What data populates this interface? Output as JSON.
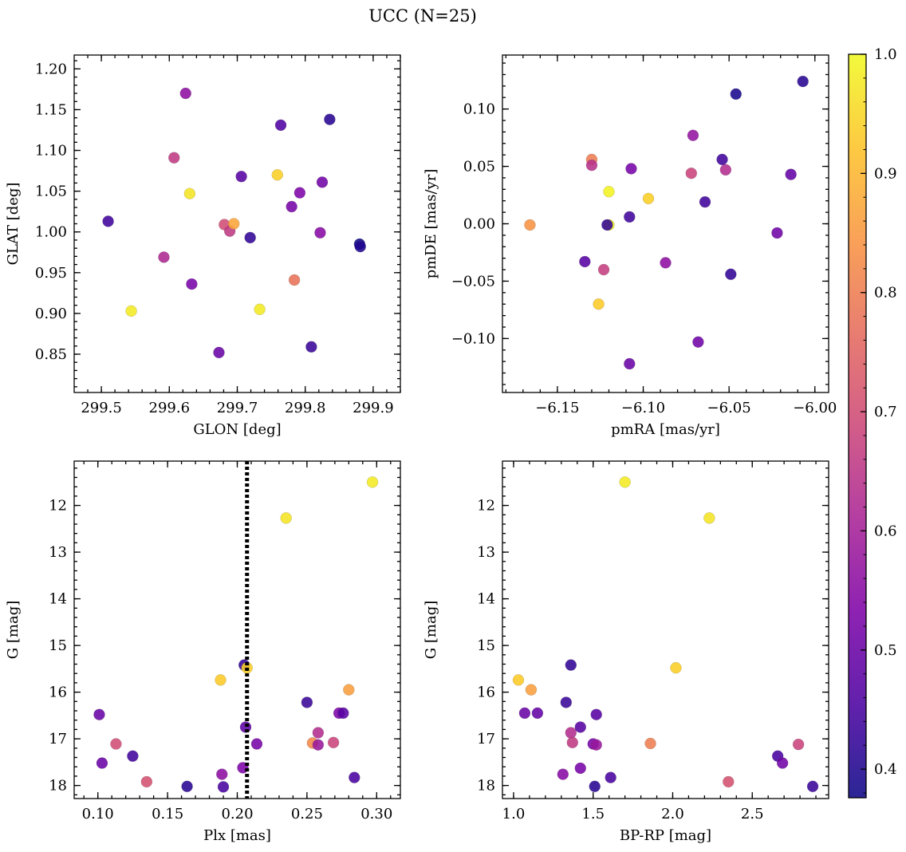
{
  "figure": {
    "title": "UCC (N=25)"
  },
  "colorbar": {
    "min": 0.376,
    "max": 1.0,
    "ticks": [
      0.4,
      0.5,
      0.6,
      0.7,
      0.8,
      0.9,
      1.0
    ],
    "tick_labels": [
      "0.4",
      "0.5",
      "0.6",
      "0.7",
      "0.8",
      "0.9",
      "1.0"
    ],
    "colormap": "plasma"
  },
  "chart_data": [
    {
      "type": "scatter",
      "xlabel": "GLON [deg]",
      "ylabel": "GLAT [deg]",
      "xlim": [
        299.46,
        299.94
      ],
      "ylim": [
        0.803,
        1.217
      ],
      "y_inverted": false,
      "xticks": [
        299.5,
        299.6,
        299.7,
        299.8,
        299.9
      ],
      "xtick_labels": [
        "299.5",
        "299.6",
        "299.7",
        "299.8",
        "299.9"
      ],
      "yticks": [
        0.85,
        0.9,
        0.95,
        1.0,
        1.05,
        1.1,
        1.15,
        1.2
      ],
      "ytick_labels": [
        "0.85",
        "0.90",
        "0.95",
        "1.00",
        "1.05",
        "1.10",
        "1.15",
        "1.20"
      ],
      "points": [
        {
          "x": 299.51,
          "y": 1.013,
          "c": 0.44
        },
        {
          "x": 299.544,
          "y": 0.903,
          "c": 0.98
        },
        {
          "x": 299.592,
          "y": 0.969,
          "c": 0.62
        },
        {
          "x": 299.607,
          "y": 1.091,
          "c": 0.66
        },
        {
          "x": 299.624,
          "y": 1.17,
          "c": 0.56
        },
        {
          "x": 299.63,
          "y": 1.047,
          "c": 0.97
        },
        {
          "x": 299.633,
          "y": 0.936,
          "c": 0.52
        },
        {
          "x": 299.673,
          "y": 0.852,
          "c": 0.5
        },
        {
          "x": 299.681,
          "y": 1.009,
          "c": 0.7
        },
        {
          "x": 299.689,
          "y": 1.001,
          "c": 0.66
        },
        {
          "x": 299.695,
          "y": 1.01,
          "c": 0.87
        },
        {
          "x": 299.706,
          "y": 1.068,
          "c": 0.47
        },
        {
          "x": 299.719,
          "y": 0.993,
          "c": 0.42
        },
        {
          "x": 299.733,
          "y": 0.905,
          "c": 0.98
        },
        {
          "x": 299.759,
          "y": 1.07,
          "c": 0.94
        },
        {
          "x": 299.764,
          "y": 1.131,
          "c": 0.46
        },
        {
          "x": 299.78,
          "y": 1.031,
          "c": 0.52
        },
        {
          "x": 299.784,
          "y": 0.941,
          "c": 0.78
        },
        {
          "x": 299.792,
          "y": 1.048,
          "c": 0.53
        },
        {
          "x": 299.809,
          "y": 0.859,
          "c": 0.43
        },
        {
          "x": 299.822,
          "y": 0.999,
          "c": 0.55
        },
        {
          "x": 299.825,
          "y": 1.061,
          "c": 0.51
        },
        {
          "x": 299.836,
          "y": 1.138,
          "c": 0.41
        },
        {
          "x": 299.88,
          "y": 0.985,
          "c": 0.38
        },
        {
          "x": 299.881,
          "y": 0.982,
          "c": 0.4
        }
      ]
    },
    {
      "type": "scatter",
      "xlabel": "pmRA [mas/yr]",
      "ylabel": "pmDE [mas/yr]",
      "xlim": [
        -6.182,
        -5.992
      ],
      "ylim": [
        -0.147,
        0.147
      ],
      "y_inverted": false,
      "xticks": [
        -6.15,
        -6.1,
        -6.05,
        -6.0
      ],
      "xtick_labels": [
        "−6.15",
        "−6.10",
        "−6.05",
        "−6.00"
      ],
      "yticks": [
        -0.1,
        -0.05,
        0.0,
        0.05,
        0.1
      ],
      "ytick_labels": [
        "−0.10",
        "−0.05",
        "0.00",
        "0.05",
        "0.10"
      ],
      "points": [
        {
          "x": -6.166,
          "y": -0.001,
          "c": 0.84
        },
        {
          "x": -6.134,
          "y": -0.033,
          "c": 0.47
        },
        {
          "x": -6.13,
          "y": 0.056,
          "c": 0.8
        },
        {
          "x": -6.13,
          "y": 0.051,
          "c": 0.64
        },
        {
          "x": -6.126,
          "y": -0.07,
          "c": 0.93
        },
        {
          "x": -6.123,
          "y": -0.04,
          "c": 0.67
        },
        {
          "x": -6.12,
          "y": -0.001,
          "c": 0.99
        },
        {
          "x": -6.121,
          "y": -0.001,
          "c": 0.42
        },
        {
          "x": -6.12,
          "y": 0.028,
          "c": 0.99
        },
        {
          "x": -6.108,
          "y": 0.006,
          "c": 0.44
        },
        {
          "x": -6.108,
          "y": -0.122,
          "c": 0.5
        },
        {
          "x": -6.107,
          "y": 0.048,
          "c": 0.52
        },
        {
          "x": -6.097,
          "y": 0.022,
          "c": 0.94
        },
        {
          "x": -6.087,
          "y": -0.034,
          "c": 0.56
        },
        {
          "x": -6.072,
          "y": 0.044,
          "c": 0.68
        },
        {
          "x": -6.071,
          "y": 0.077,
          "c": 0.57
        },
        {
          "x": -6.068,
          "y": -0.103,
          "c": 0.51
        },
        {
          "x": -6.064,
          "y": 0.019,
          "c": 0.44
        },
        {
          "x": -6.054,
          "y": 0.056,
          "c": 0.44
        },
        {
          "x": -6.052,
          "y": 0.047,
          "c": 0.63
        },
        {
          "x": -6.049,
          "y": -0.044,
          "c": 0.42
        },
        {
          "x": -6.046,
          "y": 0.113,
          "c": 0.39
        },
        {
          "x": -6.022,
          "y": -0.008,
          "c": 0.51
        },
        {
          "x": -6.014,
          "y": 0.043,
          "c": 0.49
        },
        {
          "x": -6.007,
          "y": 0.124,
          "c": 0.41
        }
      ]
    },
    {
      "type": "scatter",
      "xlabel": "Plx [mas]",
      "ylabel": "G [mag]",
      "xlim": [
        0.083,
        0.317
      ],
      "ylim": [
        18.28,
        11.05
      ],
      "y_inverted": true,
      "xticks": [
        0.1,
        0.15,
        0.2,
        0.25,
        0.3
      ],
      "xtick_labels": [
        "0.10",
        "0.15",
        "0.20",
        "0.25",
        "0.30"
      ],
      "yticks": [
        12,
        13,
        14,
        15,
        16,
        17,
        18
      ],
      "ytick_labels": [
        "12",
        "13",
        "14",
        "15",
        "16",
        "17",
        "18"
      ],
      "vline": {
        "x": 0.207,
        "style": "dotted",
        "color": "#000000"
      },
      "points": [
        {
          "x": 0.297,
          "y": 11.5,
          "c": 0.98
        },
        {
          "x": 0.235,
          "y": 12.27,
          "c": 0.97
        },
        {
          "x": 0.205,
          "y": 15.42,
          "c": 0.42
        },
        {
          "x": 0.207,
          "y": 15.48,
          "c": 0.94
        },
        {
          "x": 0.188,
          "y": 15.74,
          "c": 0.93
        },
        {
          "x": 0.28,
          "y": 15.95,
          "c": 0.86
        },
        {
          "x": 0.25,
          "y": 16.22,
          "c": 0.43
        },
        {
          "x": 0.273,
          "y": 16.45,
          "c": 0.53
        },
        {
          "x": 0.276,
          "y": 16.45,
          "c": 0.47
        },
        {
          "x": 0.101,
          "y": 16.48,
          "c": 0.5
        },
        {
          "x": 0.206,
          "y": 16.75,
          "c": 0.48
        },
        {
          "x": 0.258,
          "y": 16.87,
          "c": 0.63
        },
        {
          "x": 0.113,
          "y": 17.11,
          "c": 0.7
        },
        {
          "x": 0.254,
          "y": 17.09,
          "c": 0.82
        },
        {
          "x": 0.258,
          "y": 17.13,
          "c": 0.58
        },
        {
          "x": 0.269,
          "y": 17.08,
          "c": 0.68
        },
        {
          "x": 0.214,
          "y": 17.11,
          "c": 0.52
        },
        {
          "x": 0.125,
          "y": 17.37,
          "c": 0.44
        },
        {
          "x": 0.103,
          "y": 17.52,
          "c": 0.5
        },
        {
          "x": 0.204,
          "y": 17.62,
          "c": 0.53
        },
        {
          "x": 0.189,
          "y": 17.76,
          "c": 0.56
        },
        {
          "x": 0.284,
          "y": 17.83,
          "c": 0.45
        },
        {
          "x": 0.135,
          "y": 17.92,
          "c": 0.71
        },
        {
          "x": 0.164,
          "y": 18.02,
          "c": 0.41
        },
        {
          "x": 0.19,
          "y": 18.03,
          "c": 0.45
        }
      ]
    },
    {
      "type": "scatter",
      "xlabel": "BP-RP [mag]",
      "ylabel": "G [mag]",
      "xlim": [
        0.93,
        2.98
      ],
      "ylim": [
        18.28,
        11.05
      ],
      "y_inverted": true,
      "xticks": [
        1.0,
        1.5,
        2.0,
        2.5
      ],
      "xtick_labels": [
        "1.0",
        "1.5",
        "2.0",
        "2.5"
      ],
      "yticks": [
        12,
        13,
        14,
        15,
        16,
        17,
        18
      ],
      "ytick_labels": [
        "12",
        "13",
        "14",
        "15",
        "16",
        "17",
        "18"
      ],
      "points": [
        {
          "x": 1.7,
          "y": 11.5,
          "c": 0.98
        },
        {
          "x": 2.23,
          "y": 12.27,
          "c": 0.97
        },
        {
          "x": 1.36,
          "y": 15.42,
          "c": 0.42
        },
        {
          "x": 2.02,
          "y": 15.48,
          "c": 0.94
        },
        {
          "x": 1.03,
          "y": 15.74,
          "c": 0.93
        },
        {
          "x": 1.11,
          "y": 15.95,
          "c": 0.86
        },
        {
          "x": 1.33,
          "y": 16.22,
          "c": 0.43
        },
        {
          "x": 1.07,
          "y": 16.45,
          "c": 0.5
        },
        {
          "x": 1.15,
          "y": 16.45,
          "c": 0.49
        },
        {
          "x": 1.52,
          "y": 16.48,
          "c": 0.47
        },
        {
          "x": 1.42,
          "y": 16.75,
          "c": 0.47
        },
        {
          "x": 1.36,
          "y": 16.87,
          "c": 0.63
        },
        {
          "x": 1.37,
          "y": 17.08,
          "c": 0.66
        },
        {
          "x": 1.5,
          "y": 17.11,
          "c": 0.52
        },
        {
          "x": 1.52,
          "y": 17.13,
          "c": 0.58
        },
        {
          "x": 1.86,
          "y": 17.1,
          "c": 0.8
        },
        {
          "x": 2.79,
          "y": 17.12,
          "c": 0.68
        },
        {
          "x": 2.66,
          "y": 17.37,
          "c": 0.45
        },
        {
          "x": 2.69,
          "y": 17.52,
          "c": 0.51
        },
        {
          "x": 1.42,
          "y": 17.63,
          "c": 0.52
        },
        {
          "x": 1.31,
          "y": 17.76,
          "c": 0.55
        },
        {
          "x": 1.61,
          "y": 17.83,
          "c": 0.45
        },
        {
          "x": 2.35,
          "y": 17.92,
          "c": 0.71
        },
        {
          "x": 1.51,
          "y": 18.02,
          "c": 0.41
        },
        {
          "x": 2.88,
          "y": 18.02,
          "c": 0.43
        }
      ]
    }
  ]
}
